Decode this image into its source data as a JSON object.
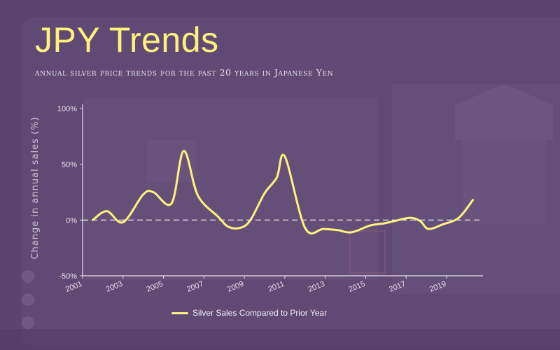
{
  "header": {
    "title": "JPY Trends",
    "subtitle": "annual silver price trends for the past 20 years in Japanese Yen"
  },
  "colors": {
    "background": "#5b4470",
    "line": "#fff27a",
    "axis": "#e6e0ee",
    "zero_line": "#ffffff"
  },
  "chart_data": {
    "type": "line",
    "title": "JPY Trends",
    "subtitle": "annual silver price trends for the past 20 years in Japanese Yen",
    "ylabel": "Change in annual sales (%)",
    "xlabel": "",
    "ylim": [
      -50,
      100
    ],
    "xlim": [
      2001,
      2020.8
    ],
    "y_ticks": [
      100,
      50,
      0,
      -50
    ],
    "y_tick_labels": [
      "100%",
      "50%",
      "0%",
      "-50%"
    ],
    "x_ticks": [
      2001,
      2003,
      2005,
      2007,
      2009,
      2011,
      2013,
      2015,
      2017,
      2019
    ],
    "x_tick_labels": [
      "2001",
      "2003",
      "2005",
      "2007",
      "2009",
      "2011",
      "2013",
      "2015",
      "2017",
      "2019"
    ],
    "zero_line": "dashed",
    "grid": false,
    "legend": "bottom",
    "series": [
      {
        "name": "Silver Sales Compared to Prior Year",
        "x": [
          2001.5,
          2002.2,
          2003.0,
          2004.0,
          2004.5,
          2005.4,
          2006.0,
          2006.7,
          2007.7,
          2008.2,
          2008.8,
          2009.3,
          2010.0,
          2010.6,
          2011.0,
          2012.0,
          2012.9,
          2013.6,
          2014.3,
          2015.2,
          2015.9,
          2016.4,
          2017.2,
          2017.7,
          2018.1,
          2018.8,
          2019.6,
          2020.3
        ],
        "values": [
          0,
          8,
          -2,
          23,
          25,
          15,
          62,
          22,
          3,
          -6,
          -7,
          0,
          24,
          38,
          57,
          -7,
          -8,
          -9,
          -11,
          -5,
          -3,
          -1,
          2,
          -1,
          -8,
          -4,
          2,
          18
        ]
      }
    ]
  }
}
